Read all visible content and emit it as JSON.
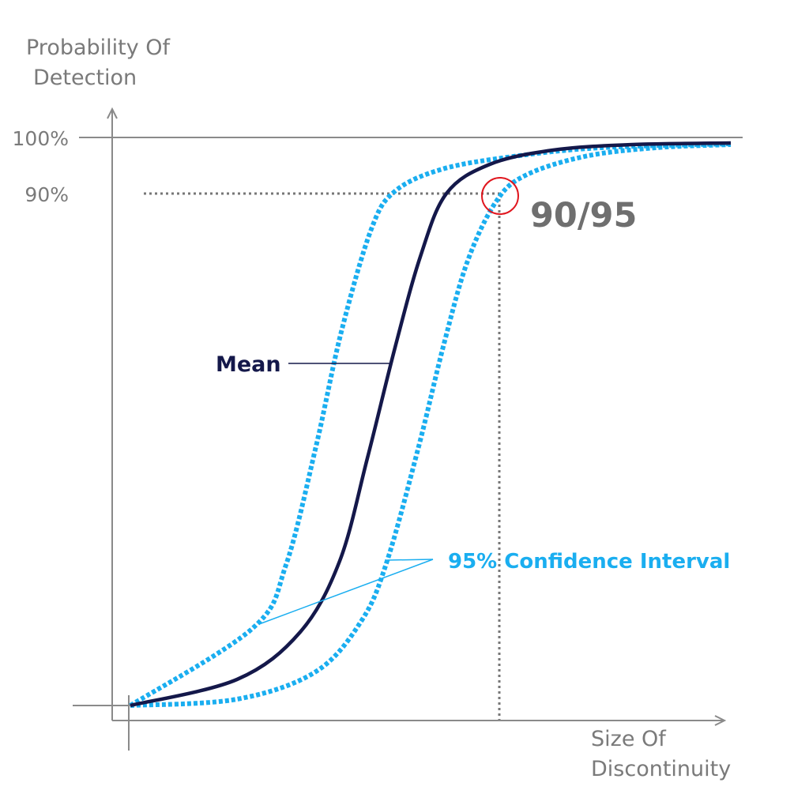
{
  "axes": {
    "y_label_line1": "Probability Of",
    "y_label_line2": "Detection",
    "x_label_line1": "Size Of",
    "x_label_line2": "Discontinuity",
    "y_ticks": [
      "100%",
      "90%"
    ]
  },
  "annotations": {
    "point_label": "90/95",
    "mean_label": "Mean",
    "ci_label": "95% Confidence Interval"
  },
  "colors": {
    "mean": "#14184a",
    "confidence_interval": "#1aaef0",
    "axes": "#8a8a8a",
    "highlight_circle": "#e0161e",
    "text_grey": "#7a7a7a"
  }
}
